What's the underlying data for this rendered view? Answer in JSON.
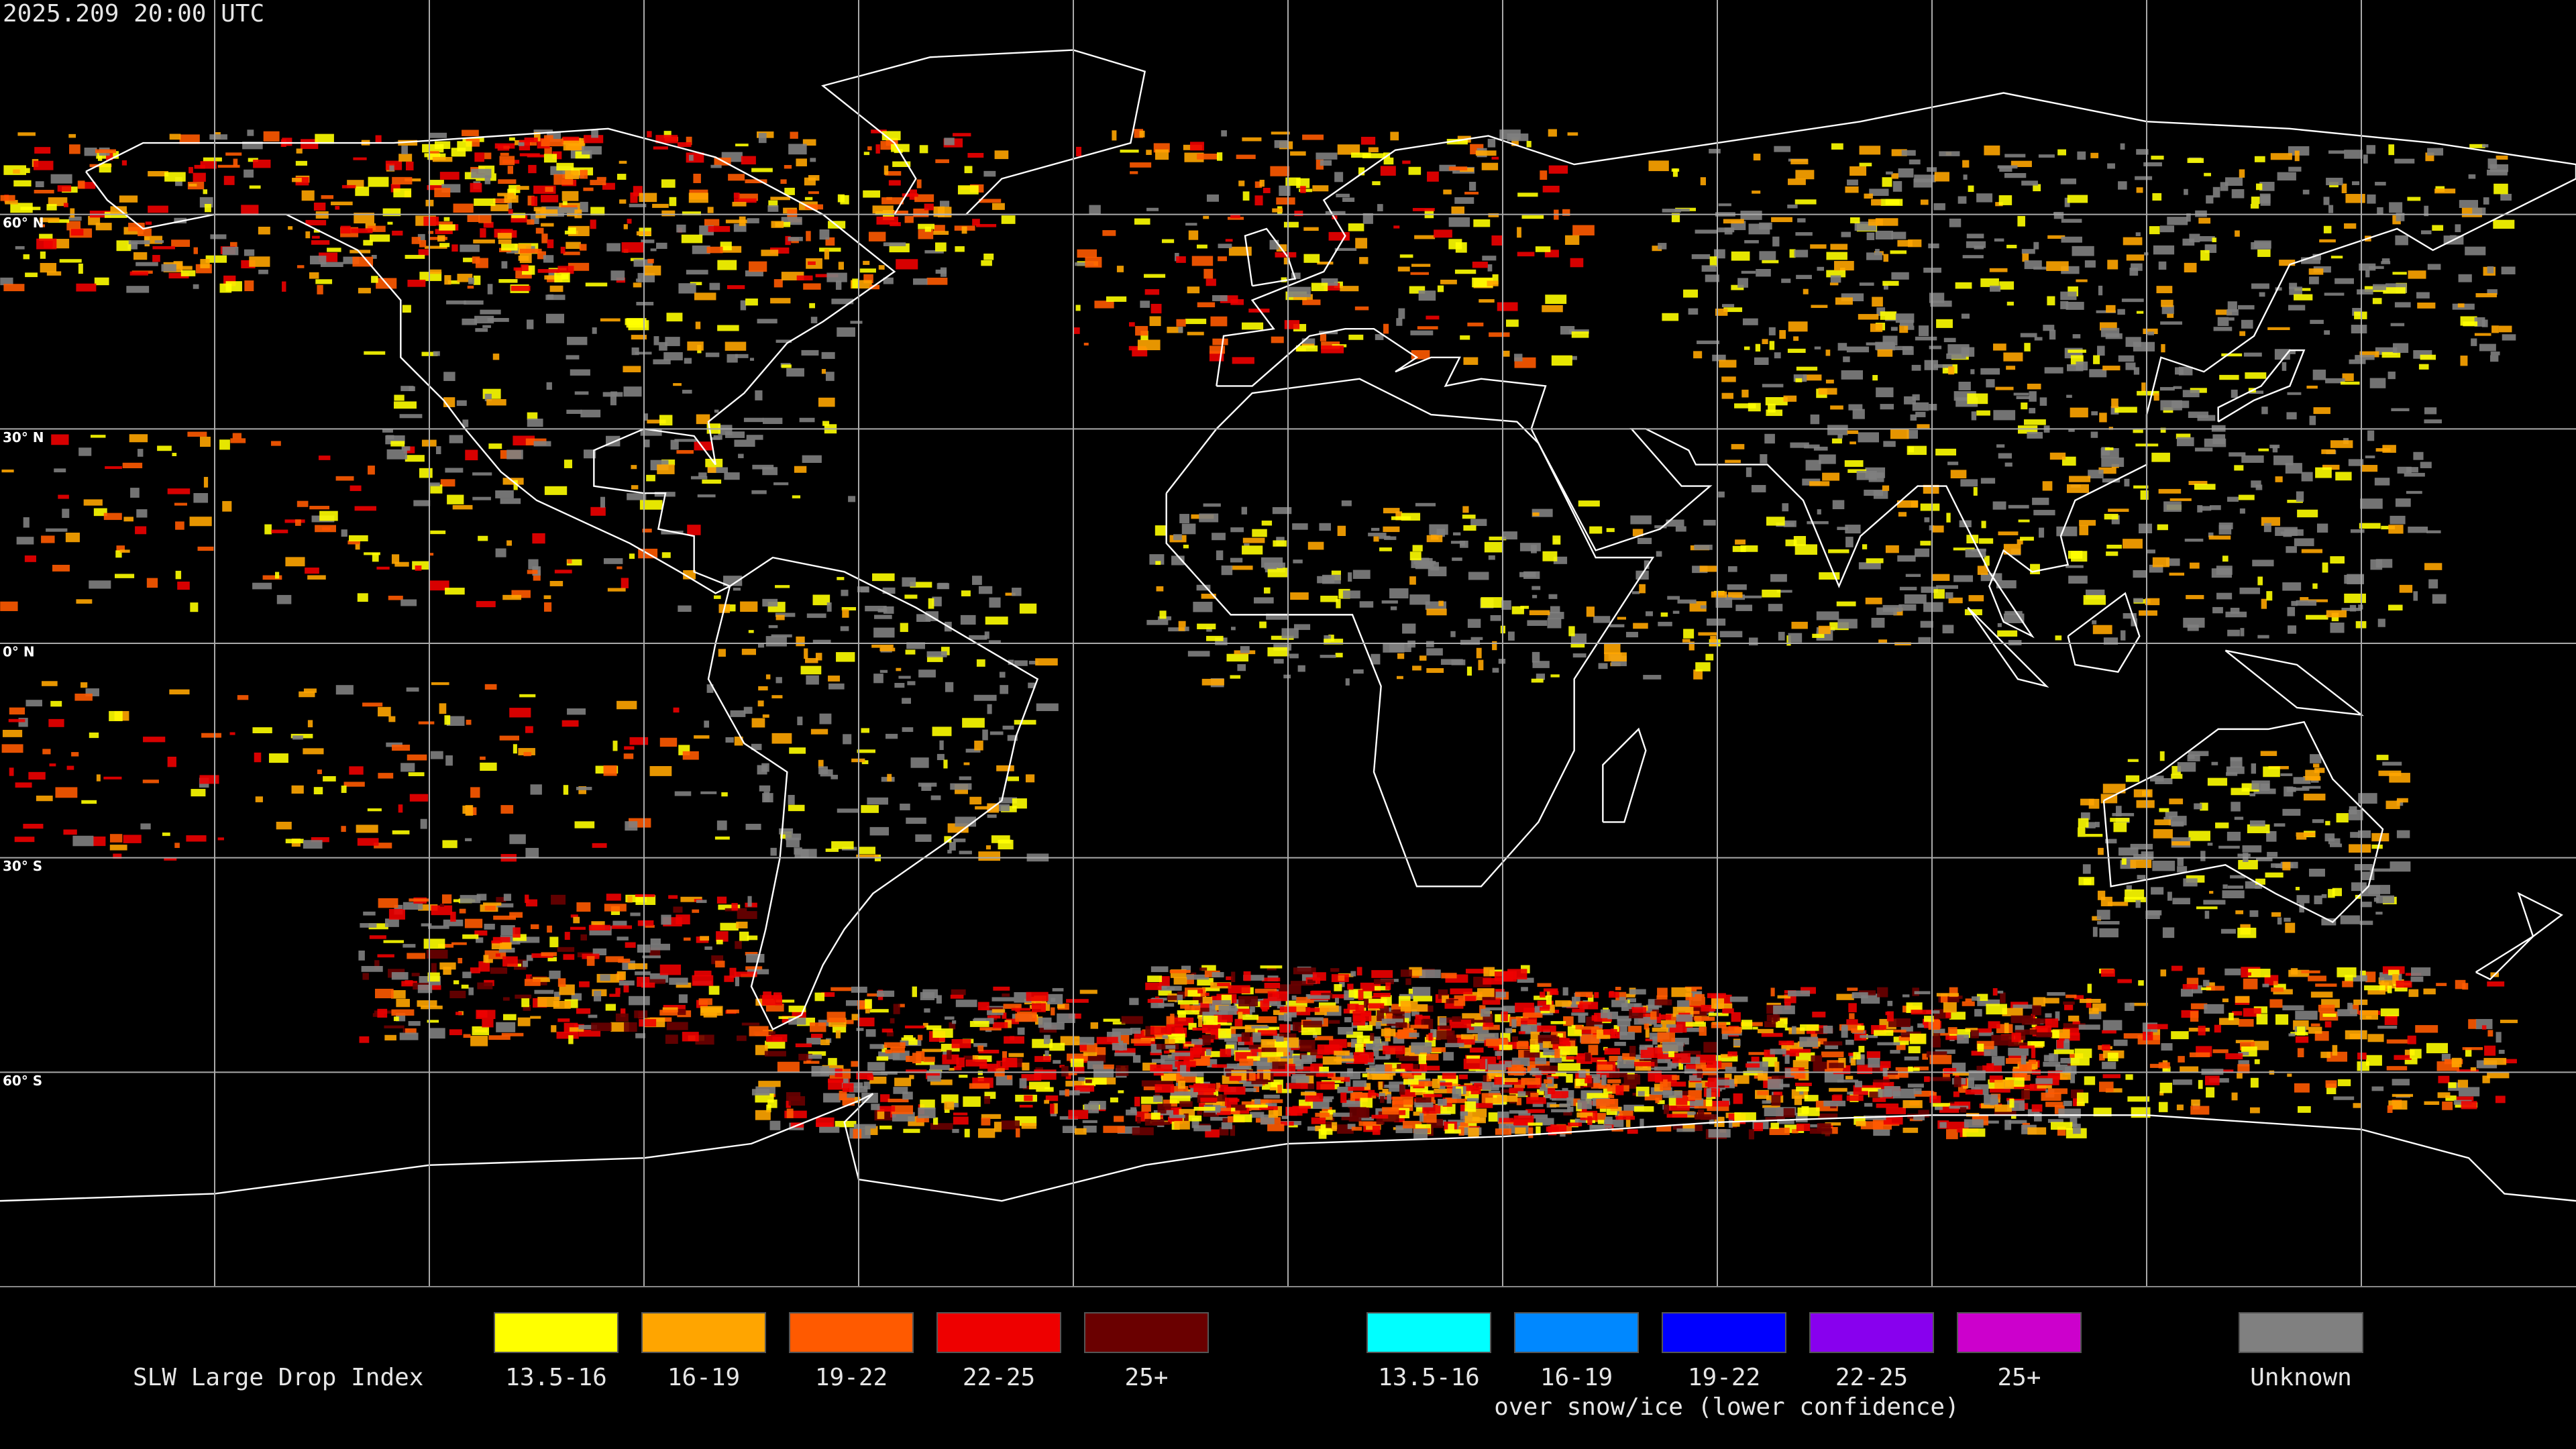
{
  "header": {
    "timestamp": "2025.209 20:00 UTC"
  },
  "map": {
    "lat_labels": [
      "60° N",
      "30° N",
      "0° N",
      "30° S",
      "60° S"
    ]
  },
  "legend": {
    "title": "SLW Large Drop Index",
    "groups": [
      {
        "items": [
          {
            "label": "13.5-16",
            "color": "#ffff00"
          },
          {
            "label": "16-19",
            "color": "#ffa500"
          },
          {
            "label": "19-22",
            "color": "#ff5a00"
          },
          {
            "label": "22-25",
            "color": "#ee0000"
          },
          {
            "label": "25+",
            "color": "#6a0000"
          }
        ]
      },
      {
        "items": [
          {
            "label": "13.5-16",
            "color": "#00ffff"
          },
          {
            "label": "16-19",
            "color": "#0088ff"
          },
          {
            "label": "19-22",
            "color": "#0000ff"
          },
          {
            "label": "22-25",
            "color": "#8800ee"
          },
          {
            "label": "25+",
            "color": "#cc00cc"
          }
        ],
        "caption": "over snow/ice (lower confidence)"
      },
      {
        "items": [
          {
            "label": "Unknown",
            "color": "#808080"
          }
        ]
      }
    ]
  }
}
